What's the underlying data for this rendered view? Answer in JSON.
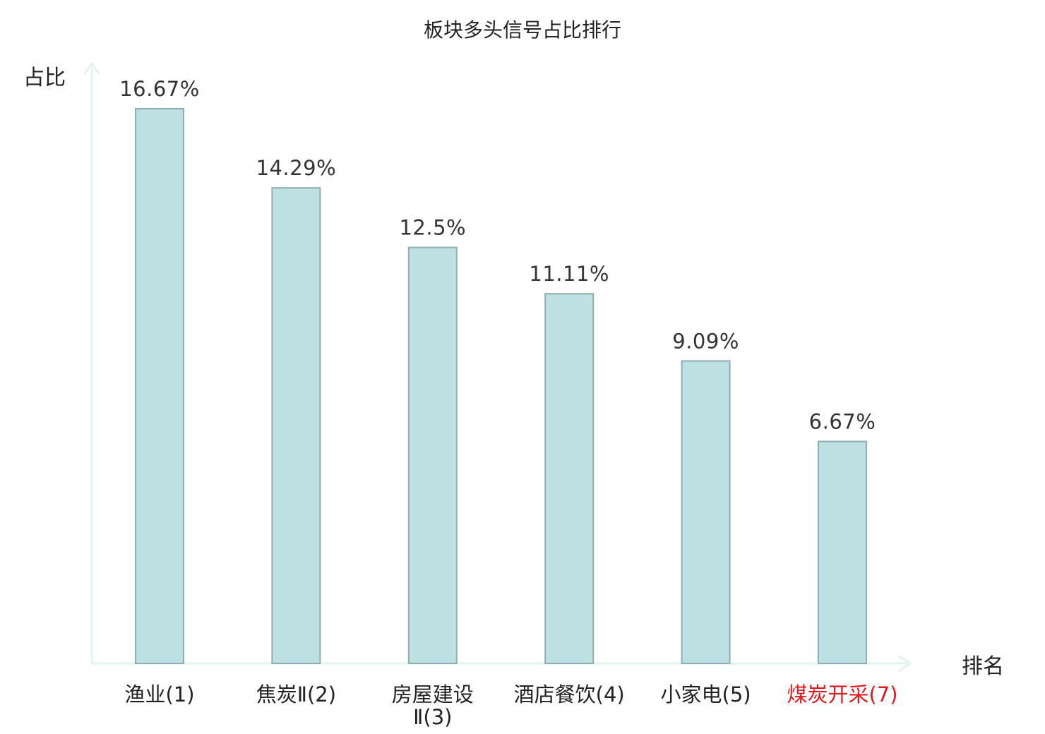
{
  "chart_data": {
    "type": "bar",
    "title": "板块多头信号占比排行",
    "ylabel": "占比",
    "xlabel": "排名",
    "ylim": [
      0,
      17.7
    ],
    "grid": false,
    "legend": "none",
    "categories": [
      [
        "渔业(1)"
      ],
      [
        "焦炭Ⅱ(2)"
      ],
      [
        "房屋建设",
        "Ⅱ(3)"
      ],
      [
        "酒店餐饮(4)"
      ],
      [
        "小家电(5)"
      ],
      [
        "煤炭开采(7)"
      ]
    ],
    "values": [
      16.67,
      14.29,
      12.5,
      11.11,
      9.09,
      6.67
    ],
    "value_labels": [
      "16.67%",
      "14.29%",
      "12.5%",
      "11.11%",
      "9.09%",
      "6.67%"
    ],
    "highlight_index": 5
  },
  "colors": {
    "bar_fill": "#bde0e3",
    "bar_stroke": "#8fadae",
    "axis": "#e2f3f0",
    "text": "#222222",
    "highlight": "#e0191e"
  }
}
